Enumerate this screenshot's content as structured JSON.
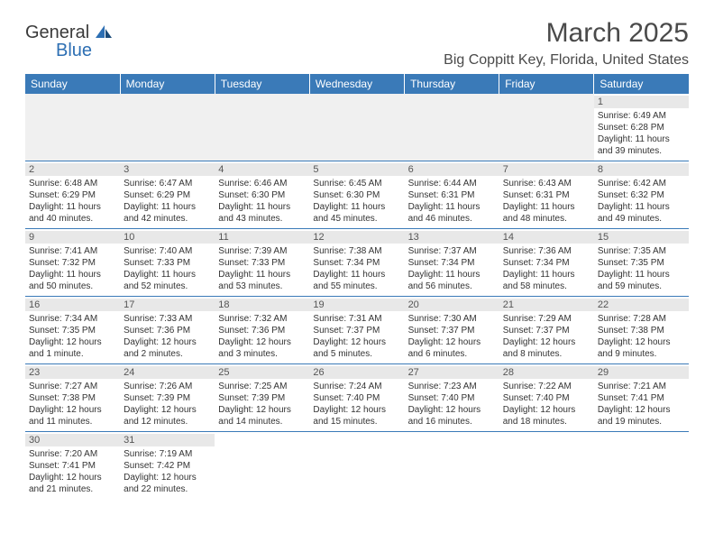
{
  "brand": {
    "part1": "General",
    "part2": "Blue"
  },
  "title": "March 2025",
  "location": "Big Coppitt Key, Florida, United States",
  "colors": {
    "header_bg": "#3a7ab8",
    "header_text": "#ffffff",
    "daynum_bg": "#e8e8e8",
    "border": "#3a7ab8",
    "logo_blue": "#2d6fb3"
  },
  "weekdays": [
    "Sunday",
    "Monday",
    "Tuesday",
    "Wednesday",
    "Thursday",
    "Friday",
    "Saturday"
  ],
  "weeks": [
    [
      null,
      null,
      null,
      null,
      null,
      null,
      {
        "n": "1",
        "sr": "Sunrise: 6:49 AM",
        "ss": "Sunset: 6:28 PM",
        "dl1": "Daylight: 11 hours",
        "dl2": "and 39 minutes."
      }
    ],
    [
      {
        "n": "2",
        "sr": "Sunrise: 6:48 AM",
        "ss": "Sunset: 6:29 PM",
        "dl1": "Daylight: 11 hours",
        "dl2": "and 40 minutes."
      },
      {
        "n": "3",
        "sr": "Sunrise: 6:47 AM",
        "ss": "Sunset: 6:29 PM",
        "dl1": "Daylight: 11 hours",
        "dl2": "and 42 minutes."
      },
      {
        "n": "4",
        "sr": "Sunrise: 6:46 AM",
        "ss": "Sunset: 6:30 PM",
        "dl1": "Daylight: 11 hours",
        "dl2": "and 43 minutes."
      },
      {
        "n": "5",
        "sr": "Sunrise: 6:45 AM",
        "ss": "Sunset: 6:30 PM",
        "dl1": "Daylight: 11 hours",
        "dl2": "and 45 minutes."
      },
      {
        "n": "6",
        "sr": "Sunrise: 6:44 AM",
        "ss": "Sunset: 6:31 PM",
        "dl1": "Daylight: 11 hours",
        "dl2": "and 46 minutes."
      },
      {
        "n": "7",
        "sr": "Sunrise: 6:43 AM",
        "ss": "Sunset: 6:31 PM",
        "dl1": "Daylight: 11 hours",
        "dl2": "and 48 minutes."
      },
      {
        "n": "8",
        "sr": "Sunrise: 6:42 AM",
        "ss": "Sunset: 6:32 PM",
        "dl1": "Daylight: 11 hours",
        "dl2": "and 49 minutes."
      }
    ],
    [
      {
        "n": "9",
        "sr": "Sunrise: 7:41 AM",
        "ss": "Sunset: 7:32 PM",
        "dl1": "Daylight: 11 hours",
        "dl2": "and 50 minutes."
      },
      {
        "n": "10",
        "sr": "Sunrise: 7:40 AM",
        "ss": "Sunset: 7:33 PM",
        "dl1": "Daylight: 11 hours",
        "dl2": "and 52 minutes."
      },
      {
        "n": "11",
        "sr": "Sunrise: 7:39 AM",
        "ss": "Sunset: 7:33 PM",
        "dl1": "Daylight: 11 hours",
        "dl2": "and 53 minutes."
      },
      {
        "n": "12",
        "sr": "Sunrise: 7:38 AM",
        "ss": "Sunset: 7:34 PM",
        "dl1": "Daylight: 11 hours",
        "dl2": "and 55 minutes."
      },
      {
        "n": "13",
        "sr": "Sunrise: 7:37 AM",
        "ss": "Sunset: 7:34 PM",
        "dl1": "Daylight: 11 hours",
        "dl2": "and 56 minutes."
      },
      {
        "n": "14",
        "sr": "Sunrise: 7:36 AM",
        "ss": "Sunset: 7:34 PM",
        "dl1": "Daylight: 11 hours",
        "dl2": "and 58 minutes."
      },
      {
        "n": "15",
        "sr": "Sunrise: 7:35 AM",
        "ss": "Sunset: 7:35 PM",
        "dl1": "Daylight: 11 hours",
        "dl2": "and 59 minutes."
      }
    ],
    [
      {
        "n": "16",
        "sr": "Sunrise: 7:34 AM",
        "ss": "Sunset: 7:35 PM",
        "dl1": "Daylight: 12 hours",
        "dl2": "and 1 minute."
      },
      {
        "n": "17",
        "sr": "Sunrise: 7:33 AM",
        "ss": "Sunset: 7:36 PM",
        "dl1": "Daylight: 12 hours",
        "dl2": "and 2 minutes."
      },
      {
        "n": "18",
        "sr": "Sunrise: 7:32 AM",
        "ss": "Sunset: 7:36 PM",
        "dl1": "Daylight: 12 hours",
        "dl2": "and 3 minutes."
      },
      {
        "n": "19",
        "sr": "Sunrise: 7:31 AM",
        "ss": "Sunset: 7:37 PM",
        "dl1": "Daylight: 12 hours",
        "dl2": "and 5 minutes."
      },
      {
        "n": "20",
        "sr": "Sunrise: 7:30 AM",
        "ss": "Sunset: 7:37 PM",
        "dl1": "Daylight: 12 hours",
        "dl2": "and 6 minutes."
      },
      {
        "n": "21",
        "sr": "Sunrise: 7:29 AM",
        "ss": "Sunset: 7:37 PM",
        "dl1": "Daylight: 12 hours",
        "dl2": "and 8 minutes."
      },
      {
        "n": "22",
        "sr": "Sunrise: 7:28 AM",
        "ss": "Sunset: 7:38 PM",
        "dl1": "Daylight: 12 hours",
        "dl2": "and 9 minutes."
      }
    ],
    [
      {
        "n": "23",
        "sr": "Sunrise: 7:27 AM",
        "ss": "Sunset: 7:38 PM",
        "dl1": "Daylight: 12 hours",
        "dl2": "and 11 minutes."
      },
      {
        "n": "24",
        "sr": "Sunrise: 7:26 AM",
        "ss": "Sunset: 7:39 PM",
        "dl1": "Daylight: 12 hours",
        "dl2": "and 12 minutes."
      },
      {
        "n": "25",
        "sr": "Sunrise: 7:25 AM",
        "ss": "Sunset: 7:39 PM",
        "dl1": "Daylight: 12 hours",
        "dl2": "and 14 minutes."
      },
      {
        "n": "26",
        "sr": "Sunrise: 7:24 AM",
        "ss": "Sunset: 7:40 PM",
        "dl1": "Daylight: 12 hours",
        "dl2": "and 15 minutes."
      },
      {
        "n": "27",
        "sr": "Sunrise: 7:23 AM",
        "ss": "Sunset: 7:40 PM",
        "dl1": "Daylight: 12 hours",
        "dl2": "and 16 minutes."
      },
      {
        "n": "28",
        "sr": "Sunrise: 7:22 AM",
        "ss": "Sunset: 7:40 PM",
        "dl1": "Daylight: 12 hours",
        "dl2": "and 18 minutes."
      },
      {
        "n": "29",
        "sr": "Sunrise: 7:21 AM",
        "ss": "Sunset: 7:41 PM",
        "dl1": "Daylight: 12 hours",
        "dl2": "and 19 minutes."
      }
    ],
    [
      {
        "n": "30",
        "sr": "Sunrise: 7:20 AM",
        "ss": "Sunset: 7:41 PM",
        "dl1": "Daylight: 12 hours",
        "dl2": "and 21 minutes."
      },
      {
        "n": "31",
        "sr": "Sunrise: 7:19 AM",
        "ss": "Sunset: 7:42 PM",
        "dl1": "Daylight: 12 hours",
        "dl2": "and 22 minutes."
      },
      null,
      null,
      null,
      null,
      null
    ]
  ]
}
